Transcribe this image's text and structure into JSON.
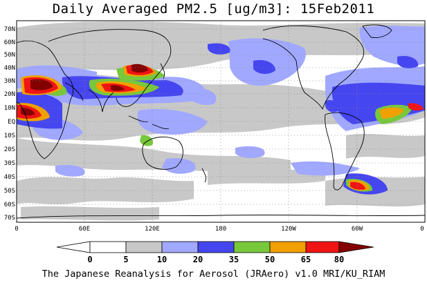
{
  "title": "Daily Averaged PM2.5 [ug/m3]: 15Feb2011",
  "credit": "The Japanese Reanalysis for Aerosol (JRAero) v1.0 MRI/KU_RIAM",
  "map": {
    "projection": "equirectangular",
    "lon_range": [
      0,
      360
    ],
    "lat_range": [
      -75,
      75
    ],
    "lat_labels": [
      "70N",
      "60N",
      "50N",
      "40N",
      "30N",
      "20N",
      "10N",
      "EQ",
      "10S",
      "20S",
      "30S",
      "40S",
      "50S",
      "60S",
      "70S"
    ],
    "lon_labels": [
      "0",
      "60E",
      "120E",
      "180",
      "120W",
      "60W",
      "0"
    ]
  },
  "colorbar": {
    "levels": [
      "0",
      "5",
      "10",
      "20",
      "35",
      "50",
      "65",
      "80"
    ],
    "colors": [
      "#ffffff",
      "#c8c8c8",
      "#a0a8ff",
      "#4646f0",
      "#78c83c",
      "#f0a000",
      "#f01414",
      "#820000"
    ]
  }
}
